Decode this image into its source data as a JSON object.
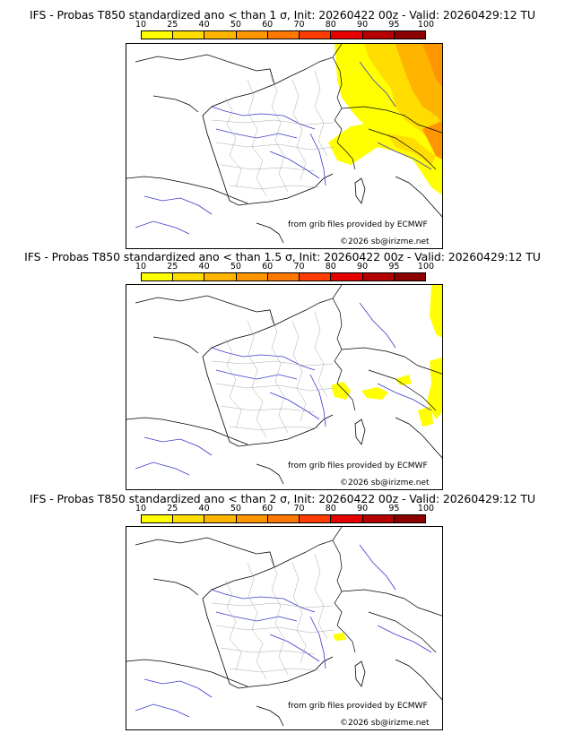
{
  "colorbar": {
    "ticks": [
      "10",
      "25",
      "40",
      "50",
      "60",
      "70",
      "80",
      "90",
      "95",
      "100"
    ],
    "colors": [
      "#ffff00",
      "#ffdd00",
      "#ffb400",
      "#ff9600",
      "#ff7800",
      "#ff3c00",
      "#e60000",
      "#b40000",
      "#8c0000",
      "#5a0000"
    ]
  },
  "panels": [
    {
      "title": "IFS - Probas T850  standardized ano < than 1 σ, Init: 20260422 00z - Valid: 20260429:12 TU",
      "credit_source": "from grib files provided by ECMWF",
      "credit_author": "©2026 sb@irizme.net",
      "level": "high"
    },
    {
      "title": "IFS - Probas T850  standardized ano < than 1.5 σ, Init: 20260422 00z - Valid: 20260429:12 TU",
      "credit_source": "from grib files provided by ECMWF",
      "credit_author": "©2026 sb@irizme.net",
      "level": "mid"
    },
    {
      "title": "IFS - Probas T850  standardized ano < than 2 σ, Init: 20260422 00z - Valid: 20260429:12 TU",
      "credit_source": "from grib files provided by ECMWF",
      "credit_author": "©2026 sb@irizme.net",
      "level": "low"
    }
  ]
}
